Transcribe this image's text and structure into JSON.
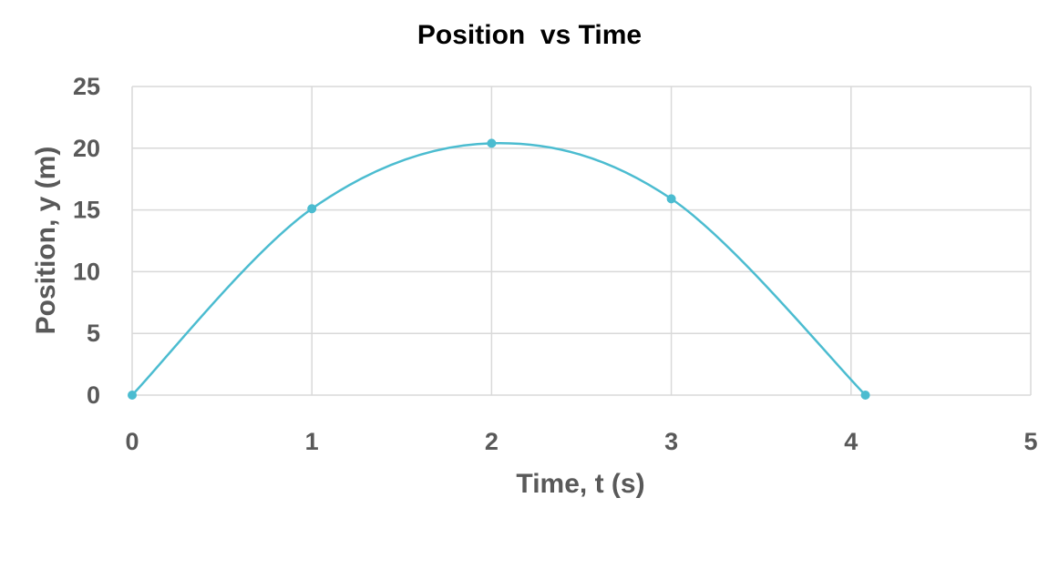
{
  "chart_data": {
    "type": "scatter",
    "title": "Position  vs Time",
    "xlabel": "Time, t (s)",
    "ylabel": "Position, y (m)",
    "xlim": [
      0,
      5
    ],
    "ylim": [
      0,
      25
    ],
    "x_ticks": [
      0,
      1,
      2,
      3,
      4,
      5
    ],
    "y_ticks": [
      0,
      5,
      10,
      15,
      20,
      25
    ],
    "grid": true,
    "smooth_line": true,
    "series": [
      {
        "x": [
          0,
          1,
          2,
          3,
          4.08
        ],
        "y": [
          0,
          15.1,
          20.4,
          15.9,
          0
        ],
        "color": "#4bbcd0"
      }
    ]
  }
}
